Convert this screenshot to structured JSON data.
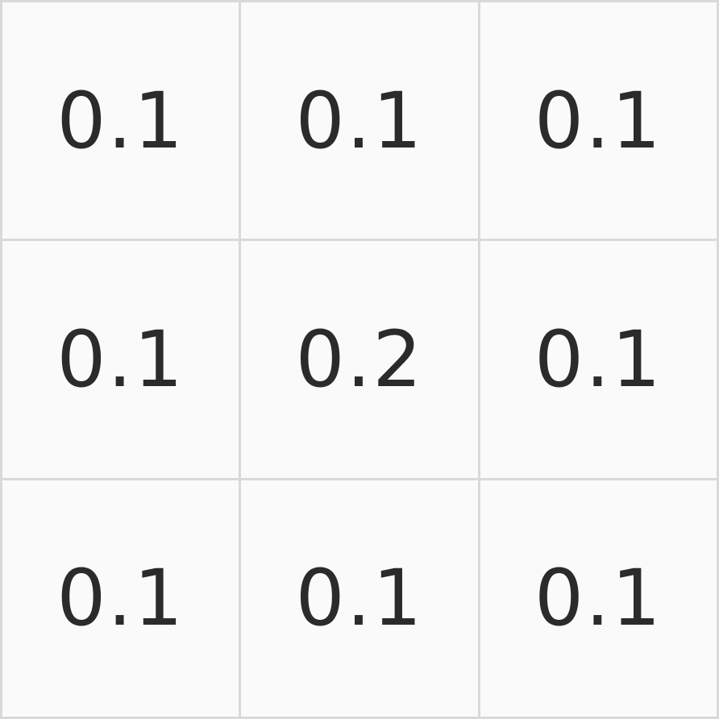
{
  "kernel": {
    "cells": [
      "0.1",
      "0.1",
      "0.1",
      "0.1",
      "0.2",
      "0.1",
      "0.1",
      "0.1",
      "0.1"
    ]
  }
}
